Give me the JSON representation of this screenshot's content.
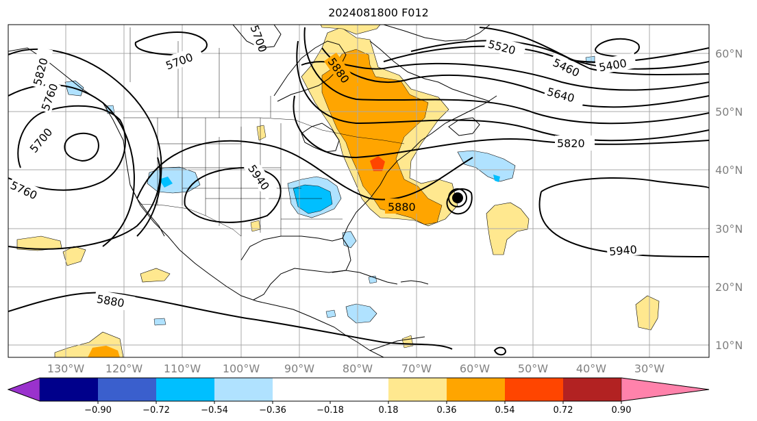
{
  "title": "2024081800 F012",
  "longitude_labels": [
    "130°W",
    "120°W",
    "110°W",
    "100°W",
    "90°W",
    "80°W",
    "70°W",
    "60°W",
    "50°W",
    "40°W",
    "30°W"
  ],
  "latitude_labels": [
    "60°N",
    "50°N",
    "40°N",
    "30°N",
    "20°N",
    "10°N"
  ],
  "contour_labels": [
    "5520",
    "5460",
    "5400",
    "5640",
    "5820",
    "5700",
    "5880",
    "5940",
    "5760",
    "5880",
    "5940",
    "5880",
    "5700",
    "5820",
    "5760",
    "5700"
  ],
  "colorbar": {
    "ticks": [
      "−0.90",
      "−0.72",
      "−0.54",
      "−0.36",
      "−0.18",
      "0.18",
      "0.36",
      "0.54",
      "0.72",
      "0.90"
    ],
    "colors": [
      "#9a32cd",
      "#00008b",
      "#3a5fcd",
      "#00bfff",
      "#b0e2ff",
      "#ffffff",
      "#ffe88f",
      "#ffa500",
      "#ff4500",
      "#b22222",
      "#ff82ab"
    ]
  },
  "fill_colors": {
    "light_yellow": "#ffe88f",
    "orange": "#ffa500",
    "red_orange": "#ff4500",
    "light_blue": "#b0e2ff",
    "blue": "#00bfff"
  }
}
